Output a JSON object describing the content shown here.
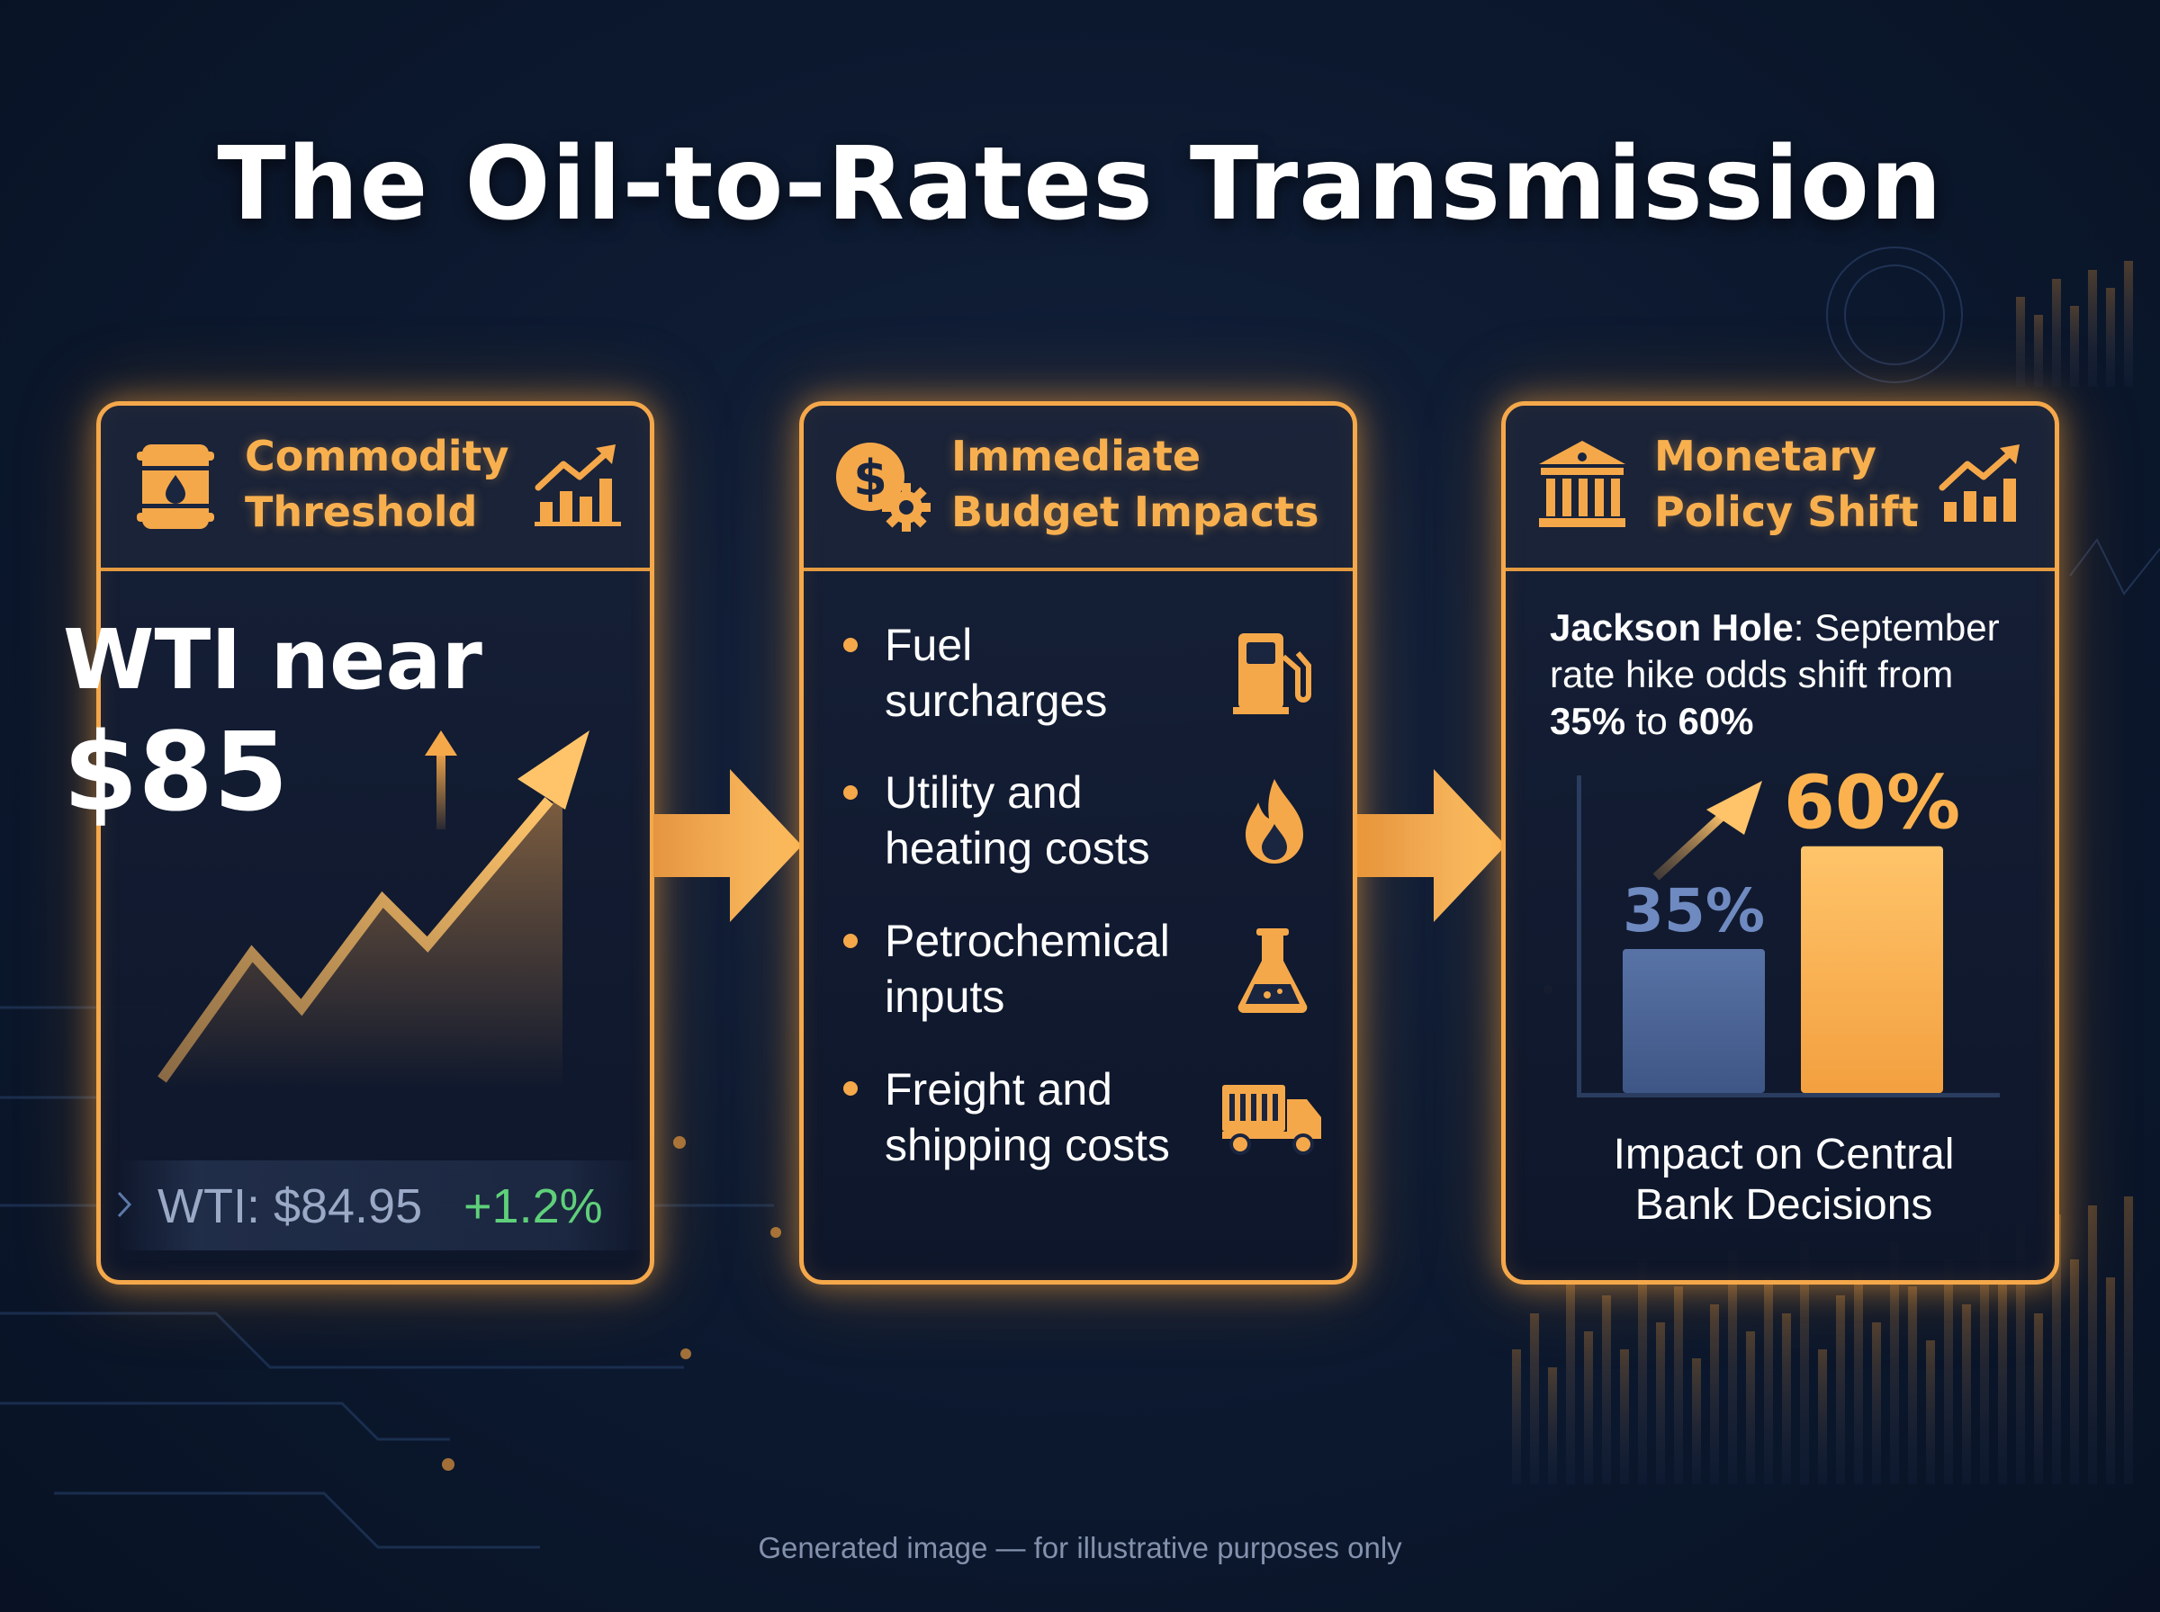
{
  "title": "The Oil-to-Rates Transmission",
  "panels": [
    {
      "title_line1": "Commodity",
      "title_line2": "Threshold",
      "icon_left": "oil-barrel-icon",
      "icon_right": "rising-bar-chart-icon",
      "headline_line1": "WTI near",
      "headline_value": "$85",
      "ticker_label": "WTI: $84.95",
      "ticker_change": "+1.2%"
    },
    {
      "title_line1": "Immediate",
      "title_line2": "Budget Impacts",
      "icon_left": "dollar-gear-icon",
      "items": [
        {
          "line1": "Fuel",
          "line2": "surcharges",
          "icon": "fuel-pump-icon"
        },
        {
          "line1": "Utility and",
          "line2": "heating costs",
          "icon": "flame-icon"
        },
        {
          "line1": "Petrochemical",
          "line2": "inputs",
          "icon": "flask-icon"
        },
        {
          "line1": "Freight and",
          "line2": "shipping costs",
          "icon": "truck-icon"
        }
      ]
    },
    {
      "title_line1": "Monetary",
      "title_line2": "Policy Shift",
      "icon_left": "bank-icon",
      "icon_right": "rising-bar-chart-icon",
      "text_bold1": "Jackson Hole",
      "text_part1": ": September rate hike odds shift from ",
      "text_bold2": "35%",
      "text_part2": " to ",
      "text_bold3": "60%",
      "caption_line1": "Impact on Central",
      "caption_line2": "Bank Decisions"
    }
  ],
  "chart_data": {
    "type": "bar",
    "categories": [
      "",
      ""
    ],
    "values": [
      35,
      60
    ],
    "value_labels": [
      "35%",
      "60%"
    ],
    "colors": [
      "#4d6594",
      "#fbb24e"
    ],
    "ylim": [
      0,
      70
    ],
    "title": "",
    "xlabel": "",
    "ylabel": ""
  },
  "colors": {
    "accent": "#f5a84a",
    "background": "#0d1a31",
    "positive": "#5fd07a"
  },
  "footer": "Generated image — for illustrative purposes only"
}
